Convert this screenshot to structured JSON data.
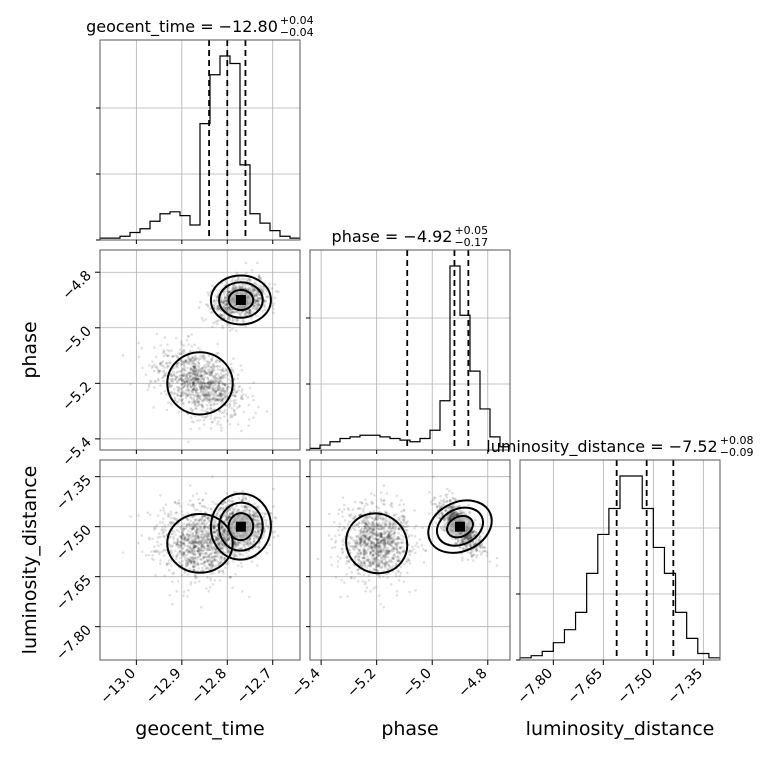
{
  "chart_data": {
    "type": "corner",
    "parameters": [
      "geocent_time",
      "phase",
      "luminosity_distance"
    ],
    "titles": {
      "geocent_time": {
        "label": "geocent_time",
        "median": "−12.80",
        "plus": "+0.04",
        "minus": "−0.04"
      },
      "phase": {
        "label": "phase",
        "median": "−4.92",
        "plus": "+0.05",
        "minus": "−0.17"
      },
      "luminosity_distance": {
        "label": "luminosity_distance",
        "median": "−7.52",
        "plus": "+0.08",
        "minus": "−0.09"
      }
    },
    "ranges": {
      "geocent_time": [
        -13.08,
        -12.64
      ],
      "phase": [
        -5.44,
        -4.72
      ],
      "luminosity_distance": [
        -7.9,
        -7.3
      ]
    },
    "ticks": {
      "geocent_time": {
        "values": [
          -13.0,
          -12.9,
          -12.8,
          -12.7
        ],
        "labels": [
          "−13.0",
          "−12.9",
          "−12.8",
          "−12.7"
        ]
      },
      "phase": {
        "values": [
          -5.4,
          -5.2,
          -5.0,
          -4.8
        ],
        "labels": [
          "−5.4",
          "−5.2",
          "−5.0",
          "−4.8"
        ]
      },
      "luminosity_distance": {
        "values": [
          -7.8,
          -7.65,
          -7.5,
          -7.35
        ],
        "labels": [
          "−7.80",
          "−7.65",
          "−7.50",
          "−7.35"
        ]
      }
    },
    "quantiles": {
      "geocent_time": [
        -12.84,
        -12.8,
        -12.76
      ],
      "phase": [
        -5.09,
        -4.92,
        -4.87
      ],
      "luminosity_distance": [
        -7.61,
        -7.52,
        -7.44
      ]
    },
    "histograms": {
      "geocent_time": {
        "edges_range": [
          -13.08,
          -12.64
        ],
        "counts": [
          1,
          1,
          2,
          4,
          6,
          10,
          14,
          15,
          13,
          8,
          62,
          88,
          98,
          94,
          40,
          14,
          9,
          5,
          2,
          1
        ]
      },
      "phase": {
        "edges_range": [
          -5.44,
          -4.72
        ],
        "counts": [
          1,
          3,
          5,
          7,
          8,
          9,
          9,
          8,
          7,
          6,
          5,
          7,
          12,
          30,
          112,
          82,
          48,
          25,
          8,
          2
        ]
      },
      "luminosity_distance": {
        "edges_range": [
          -7.9,
          -7.3
        ],
        "counts": [
          1,
          2,
          4,
          8,
          14,
          22,
          40,
          58,
          70,
          85,
          85,
          70,
          52,
          40,
          22,
          10,
          3,
          1
        ]
      }
    },
    "modes": [
      {
        "geocent_time": -12.86,
        "phase": -5.2,
        "luminosity_distance": -7.55,
        "spread": [
          0.045,
          0.07,
          0.055
        ]
      },
      {
        "geocent_time": -12.77,
        "phase": -4.9,
        "luminosity_distance": -7.5,
        "spread": [
          0.03,
          0.04,
          0.045
        ]
      }
    ],
    "grid": true,
    "xlabels": [
      "geocent_time",
      "phase",
      "luminosity_distance"
    ],
    "ylabels": [
      "phase",
      "luminosity_distance"
    ],
    "colors": {
      "lines": "#000000",
      "samples": "#000000",
      "grid": "#b0b0b0"
    }
  }
}
